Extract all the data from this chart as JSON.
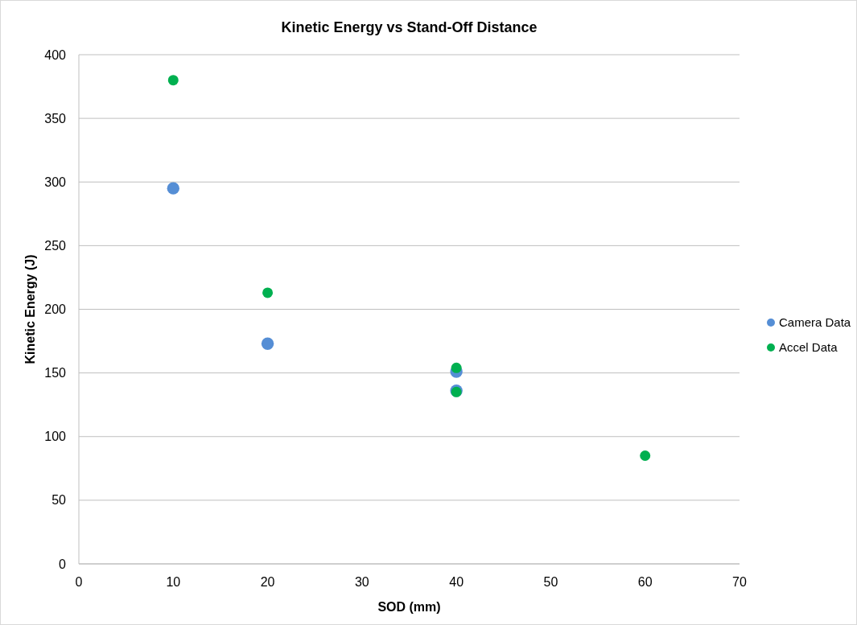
{
  "chart_data": {
    "type": "scatter",
    "title": "Kinetic Energy vs Stand-Off Distance",
    "xlabel": "SOD (mm)",
    "ylabel": "Kinetic Energy (J)",
    "series": [
      {
        "name": "Camera Data",
        "color": "#558ed5",
        "x": [
          10,
          20,
          40,
          40
        ],
        "values": [
          295,
          173,
          151,
          136
        ]
      },
      {
        "name": "Accel Data",
        "color": "#00b050",
        "x": [
          10,
          20,
          40,
          40,
          60
        ],
        "values": [
          380,
          213,
          154,
          135,
          85
        ]
      }
    ],
    "xlim": [
      0,
      70
    ],
    "xticks": [
      0,
      10,
      20,
      30,
      40,
      50,
      60,
      70
    ],
    "ylim": [
      0,
      400
    ],
    "yticks": [
      0,
      50,
      100,
      150,
      200,
      250,
      300,
      350,
      400
    ],
    "grid": "y",
    "legend": "right",
    "marker": "circle"
  }
}
